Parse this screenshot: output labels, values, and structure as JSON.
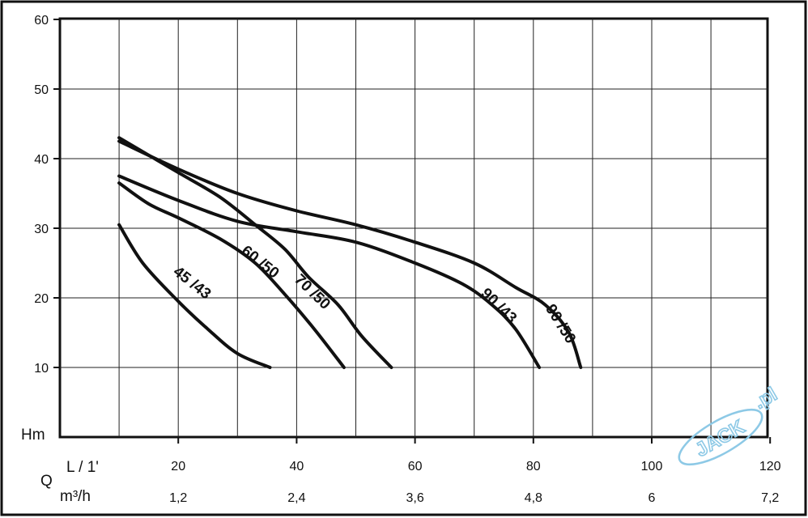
{
  "chart_data": {
    "type": "line",
    "title": "",
    "ylabel": "Hm",
    "xlabel": "Q",
    "x_units": [
      "L / 1'",
      "m³/h"
    ],
    "ylim": [
      0,
      60
    ],
    "xlim": [
      0,
      120
    ],
    "y_ticks": [
      10,
      20,
      30,
      40,
      50,
      60
    ],
    "x_ticks": [
      20,
      40,
      60,
      80,
      100,
      120
    ],
    "x_ticks_secondary": [
      "1,2",
      "2,4",
      "3,6",
      "4,8",
      "6",
      "7,2"
    ],
    "grid": true,
    "series": [
      {
        "name": "45 /43",
        "x": [
          10,
          14,
          20,
          25,
          30,
          35.5
        ],
        "y": [
          30.5,
          25,
          19.5,
          15.5,
          12,
          10
        ]
      },
      {
        "name": "60 /50",
        "x": [
          10,
          15,
          20,
          27,
          33,
          38,
          43,
          48
        ],
        "y": [
          36.5,
          33.5,
          31.5,
          28.5,
          25,
          20.5,
          15.5,
          10
        ]
      },
      {
        "name": "70 /50",
        "x": [
          10,
          15,
          20,
          27,
          33,
          38,
          42,
          47,
          51,
          56
        ],
        "y": [
          43,
          40.5,
          38,
          34.5,
          30.5,
          27,
          23,
          19,
          14.5,
          10
        ]
      },
      {
        "name": "90 /43",
        "x": [
          10,
          20,
          30,
          40,
          50,
          60,
          68,
          73,
          77,
          81
        ],
        "y": [
          37.5,
          34,
          31,
          29.5,
          28,
          25,
          22,
          19,
          15.5,
          10
        ]
      },
      {
        "name": "90 /50",
        "x": [
          10,
          20,
          30,
          40,
          50,
          60,
          70,
          77,
          82,
          86,
          88
        ],
        "y": [
          42.5,
          38.5,
          35,
          32.5,
          30.5,
          28,
          25,
          21.5,
          19,
          15,
          10
        ]
      }
    ],
    "watermark": "JACK",
    "watermark_suffix": ".pl"
  }
}
